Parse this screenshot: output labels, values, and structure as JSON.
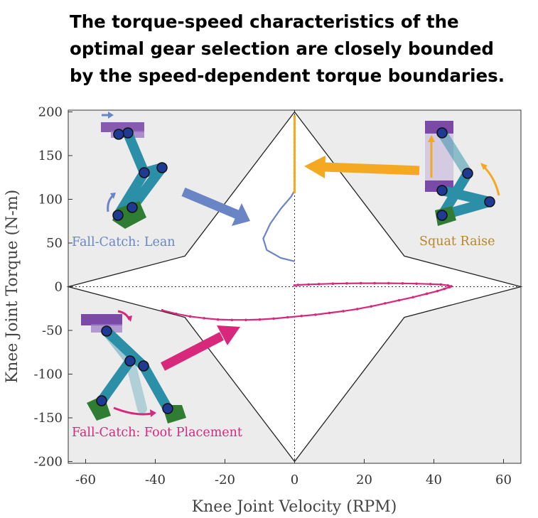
{
  "headline": [
    "The torque-speed characteristics of the",
    "optimal gear selection are closely bounded",
    "by the speed-dependent torque boundaries."
  ],
  "colors": {
    "lean": "#6a85c6",
    "squat": "#f5a821",
    "foot": "#d8287c",
    "region": "#ececec",
    "boundary": "#222222",
    "annotation_squat": "#b8862e"
  },
  "chart_data": {
    "type": "scatter",
    "xlabel": "Knee Joint Velocity (RPM)",
    "ylabel": "Knee Joint Torque (N-m)",
    "xlim": [
      -65,
      65
    ],
    "ylim": [
      -202,
      202
    ],
    "xticks": [
      -60,
      -40,
      -20,
      0,
      20,
      40,
      60
    ],
    "yticks": [
      200,
      150,
      100,
      50,
      0,
      -50,
      -100,
      -150,
      -200
    ],
    "zero_lines": "dotted",
    "boundary": {
      "x": [
        0,
        31.5,
        65,
        31.5,
        0,
        -31.5,
        -65,
        -31.5,
        0
      ],
      "y": [
        200,
        35,
        0,
        -35,
        -200,
        -35,
        0,
        35,
        200
      ]
    },
    "annotations": [
      {
        "text": "Fall-Catch: Lean",
        "color": "#6a85c6"
      },
      {
        "text": "Squat Raise",
        "color": "#b8862e"
      },
      {
        "text": "Fall-Catch: Foot Placement",
        "color": "#d8287c"
      }
    ],
    "series": [
      {
        "color": "#6a85c6",
        "markers": false,
        "x": [
          0,
          -4,
          -8,
          -9,
          -7,
          -4,
          -1,
          0
        ],
        "y": [
          29,
          33,
          42,
          55,
          72,
          89,
          103,
          110
        ]
      },
      {
        "color": "#f5a821",
        "markers": true,
        "x": [
          0,
          0,
          0,
          0,
          0,
          0,
          0,
          0,
          0,
          0,
          0,
          0,
          0,
          0,
          0,
          0,
          0,
          0,
          0,
          0,
          0
        ],
        "y": [
          108,
          112,
          117,
          121,
          126,
          130,
          134,
          138,
          143,
          147,
          151,
          156,
          160,
          165,
          169,
          173,
          177,
          182,
          186,
          191,
          195
        ]
      },
      {
        "color": "#d8287c",
        "markers": true,
        "x": [
          -38,
          -34,
          -30,
          -26,
          -22,
          -18,
          -14,
          -10,
          -6,
          -2,
          2,
          6,
          10,
          14,
          18,
          22,
          26,
          30,
          34,
          38,
          41,
          43,
          44.5,
          45,
          44,
          42,
          39,
          35,
          31,
          27,
          23,
          19,
          15,
          11,
          7,
          4,
          1,
          0
        ],
        "y": [
          -27,
          -31,
          -34,
          -36,
          -37.5,
          -38,
          -38,
          -37.5,
          -36.5,
          -35,
          -33.5,
          -32,
          -30,
          -28,
          -25.5,
          -22.5,
          -19,
          -15.5,
          -12,
          -8,
          -5,
          -2.5,
          -0.5,
          0.5,
          1.5,
          2.5,
          3,
          3.5,
          3.8,
          4,
          4,
          4,
          3.8,
          3.5,
          3,
          2.5,
          2,
          1.5
        ]
      }
    ]
  }
}
